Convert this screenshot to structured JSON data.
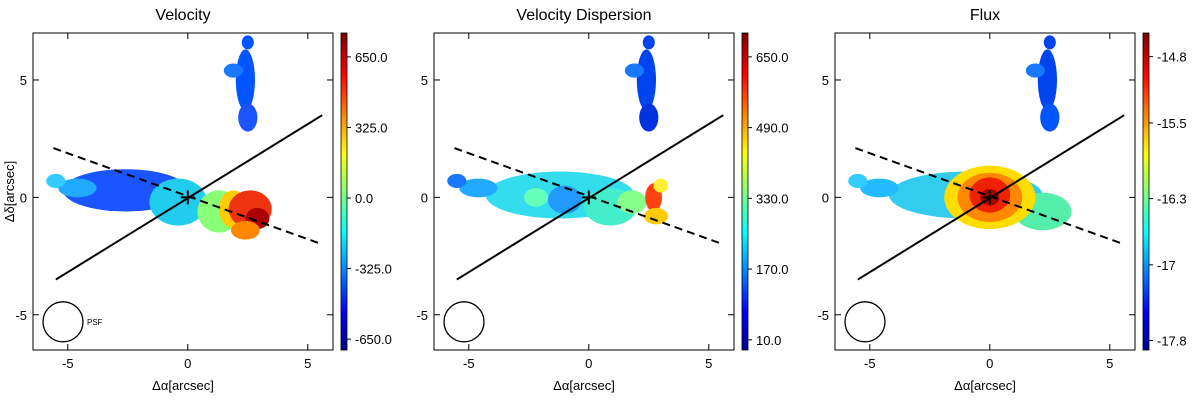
{
  "chart_data": [
    {
      "type": "heatmap",
      "title": "Velocity",
      "xlabel": "Δα[arcsec]",
      "ylabel": "Δδ[arcsec]",
      "xlim": [
        -6.45,
        6.05
      ],
      "ylim": [
        -6.5,
        7.0
      ],
      "xticks": [
        -5,
        0,
        5
      ],
      "yticks": [
        -5,
        0,
        5
      ],
      "clim": [
        -700,
        760
      ],
      "cticks": [
        {
          "value": 650,
          "label": "650.0"
        },
        {
          "value": 325,
          "label": "325.0"
        },
        {
          "value": 0,
          "label": "0.0"
        },
        {
          "value": -325,
          "label": "-325.0"
        },
        {
          "value": -650,
          "label": "-650.0"
        }
      ],
      "psf_label": "PSF"
    },
    {
      "type": "heatmap",
      "title": "Velocity Dispersion",
      "xlabel": "Δα[arcsec]",
      "xlim": [
        -6.45,
        6.05
      ],
      "ylim": [
        -6.5,
        7.0
      ],
      "xticks": [
        -5,
        0,
        5
      ],
      "yticks": [
        -5,
        0,
        5
      ],
      "clim": [
        -13,
        704
      ],
      "cticks": [
        {
          "value": 650,
          "label": "650.0"
        },
        {
          "value": 490,
          "label": "490.0"
        },
        {
          "value": 330,
          "label": "330.0"
        },
        {
          "value": 170,
          "label": "170.0"
        },
        {
          "value": 10,
          "label": "10.0"
        }
      ]
    },
    {
      "type": "heatmap",
      "title": "Flux",
      "xlabel": "Δα[arcsec]",
      "xlim": [
        -6.45,
        6.05
      ],
      "ylim": [
        -6.5,
        7.0
      ],
      "xticks": [
        -5,
        0,
        5
      ],
      "yticks": [
        -5,
        0,
        5
      ],
      "clim": [
        -17.9,
        -14.55
      ],
      "cticks": [
        -14.8,
        -15.5,
        -16.3,
        -17.0,
        -17.8
      ]
    }
  ]
}
